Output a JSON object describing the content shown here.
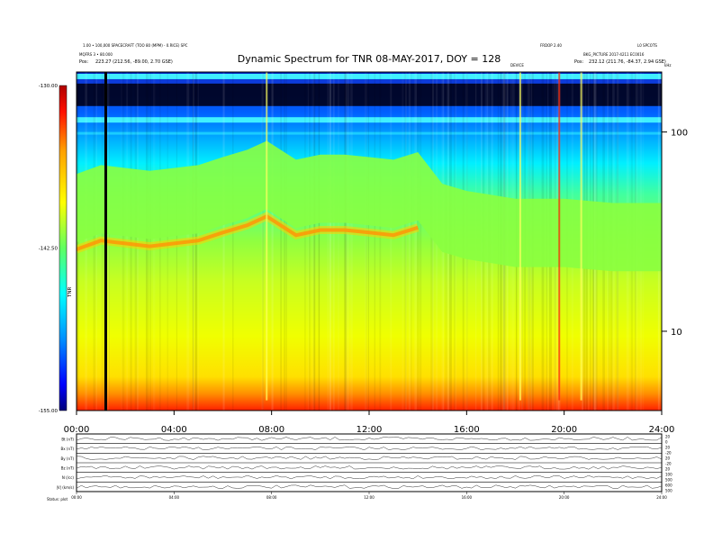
{
  "header": {
    "left_line1": "1.00 • 100,000 SPACECRAFT (TOO 80 (MPM) - 0.RICE) SPC",
    "left_line2": "MQFRS 3 • 80.000",
    "left_pos_label": "Pos:",
    "left_pos_value": "223.27 (212.56, -89.00, 2.70 GSE)",
    "right_line1": "FRDOP 2.40",
    "right_line1b": "L0 SPCOTS",
    "right_line2": "BKG_PICTURE 2017-4211 EC0016",
    "right_pos_label": "Pos:",
    "right_pos_value": "232.12 (211.76, -84.37, 2.94 GSE)",
    "center_small": "DEVICE",
    "right_edge_small": "kHz"
  },
  "chart_data": {
    "type": "heatmap",
    "title": "Dynamic Spectrum for TNR 08-MAY-2017, DOY = 128",
    "x_ticks": [
      "00:00",
      "04:00",
      "08:00",
      "12:00",
      "16:00",
      "20:00",
      "24:00"
    ],
    "x_range_hours": [
      0,
      24
    ],
    "y_scale": "log",
    "y_range_khz": [
      4,
      200
    ],
    "y_ticks": [
      {
        "value": 10,
        "label": "10"
      },
      {
        "value": 100,
        "label": "100"
      }
    ],
    "y_unit_label": "kHz",
    "colorbar": {
      "ticks": [
        "-130.00",
        "-142.50",
        "-155.00"
      ],
      "range": [
        -155,
        -130
      ],
      "label": "TNR",
      "colors": [
        "#00007a",
        "#0000ff",
        "#00c8ff",
        "#00ffff",
        "#80ff50",
        "#ffff00",
        "#ffa000",
        "#ff0000",
        "#b00000"
      ]
    },
    "data_gap_vertical_line_hour": 1.2,
    "bright_bands_khz": [
      190,
      115
    ],
    "dark_band_khz": [
      135,
      175
    ],
    "plasma_line_khz_by_hour": [
      [
        0,
        28
      ],
      [
        1,
        31
      ],
      [
        2,
        30
      ],
      [
        3,
        29
      ],
      [
        4,
        30
      ],
      [
        5,
        31
      ],
      [
        6,
        34
      ],
      [
        7,
        37
      ],
      [
        7.8,
        41
      ],
      [
        9,
        33
      ],
      [
        10,
        35
      ],
      [
        11,
        35
      ],
      [
        12,
        34
      ],
      [
        13,
        33
      ],
      [
        14,
        36
      ],
      [
        15,
        25
      ],
      [
        16,
        23
      ],
      [
        17,
        22
      ],
      [
        18,
        21
      ],
      [
        19,
        21
      ],
      [
        20,
        21
      ],
      [
        22,
        20
      ],
      [
        24,
        20
      ]
    ],
    "bursts_hour": [
      7.8,
      18.2,
      19.8,
      20.7
    ]
  },
  "lower_panel": {
    "row_labels": [
      "Bt (nT)",
      "Bx (nT)",
      "By (nT)",
      "Bz (nT)",
      "N (/cc)",
      "|V| (km/s)"
    ],
    "right_scale": [
      "20",
      "0",
      "20",
      "-20",
      "20",
      "-20",
      "20",
      "100",
      "500",
      "600",
      "500"
    ],
    "x_ticks": [
      "00:00",
      "04:00",
      "08:00",
      "12:00",
      "16:00",
      "20:00",
      "24:00"
    ],
    "footer_left": "Status: plot"
  }
}
